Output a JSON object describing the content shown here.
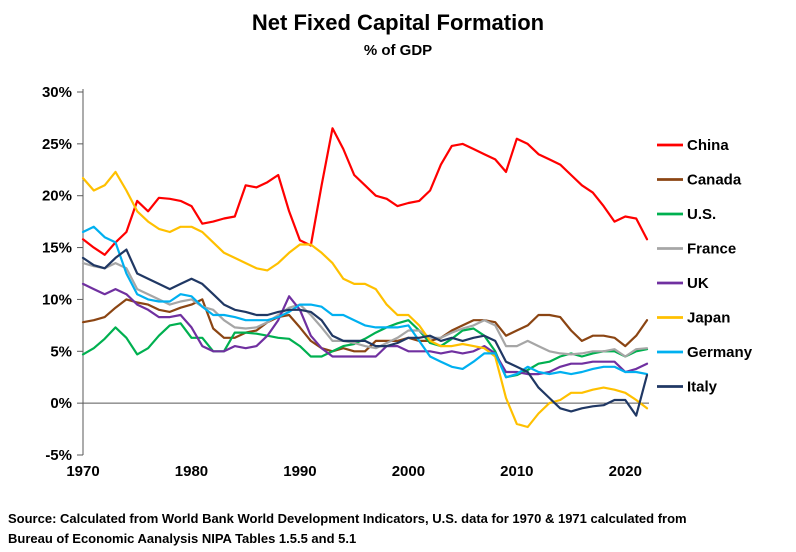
{
  "chart_data": {
    "type": "line",
    "title": "Net Fixed Capital Formation",
    "subtitle": "% of GDP",
    "x_start_year": 1970,
    "x_step": 1,
    "xlim": [
      1970,
      2022
    ],
    "ylim": [
      -5,
      30
    ],
    "xticks": [
      "1970",
      "1980",
      "1990",
      "2000",
      "2010",
      "2020"
    ],
    "yticks": [
      "30%",
      "25%",
      "20%",
      "15%",
      "10%",
      "5%",
      "0%",
      "-5%"
    ],
    "grid": false,
    "legend_position": "right",
    "axis_color": "#595959",
    "series": [
      {
        "name": "China",
        "color": "#FF0000",
        "values": [
          15.8,
          15.0,
          14.3,
          15.5,
          16.5,
          19.5,
          18.5,
          19.8,
          19.7,
          19.5,
          19.0,
          17.3,
          17.5,
          17.8,
          18.0,
          21.0,
          20.8,
          21.3,
          22.0,
          18.5,
          15.7,
          15.2,
          21.0,
          26.5,
          24.5,
          22.0,
          21.0,
          20.0,
          19.7,
          19.0,
          19.3,
          19.5,
          20.5,
          23.0,
          24.8,
          25.0,
          24.5,
          24.0,
          23.5,
          22.3,
          25.5,
          25.0,
          24.0,
          23.5,
          23.0,
          22.0,
          21.0,
          20.3,
          19.0,
          17.5,
          18.0,
          17.8,
          15.8
        ]
      },
      {
        "name": "Canada",
        "color": "#8B4513",
        "values": [
          7.8,
          8.0,
          8.3,
          9.2,
          10.0,
          9.7,
          9.5,
          9.0,
          8.8,
          9.2,
          9.5,
          10.0,
          7.2,
          6.3,
          6.3,
          6.8,
          7.0,
          7.8,
          8.3,
          8.5,
          7.3,
          6.0,
          5.3,
          5.0,
          5.3,
          5.0,
          5.0,
          6.0,
          6.0,
          6.0,
          6.3,
          6.0,
          6.0,
          6.3,
          7.0,
          7.5,
          8.0,
          8.0,
          7.8,
          6.5,
          7.0,
          7.5,
          8.5,
          8.5,
          8.3,
          7.0,
          6.0,
          6.5,
          6.5,
          6.3,
          5.5,
          6.5,
          8.0
        ]
      },
      {
        "name": "U.S.",
        "color": "#00B050",
        "values": [
          4.7,
          5.3,
          6.2,
          7.3,
          6.3,
          4.7,
          5.3,
          6.5,
          7.5,
          7.7,
          6.3,
          6.3,
          5.0,
          5.0,
          6.8,
          6.8,
          6.7,
          6.5,
          6.3,
          6.2,
          5.5,
          4.5,
          4.5,
          5.0,
          5.5,
          5.7,
          6.2,
          6.8,
          7.3,
          7.7,
          8.0,
          7.0,
          5.8,
          5.5,
          6.2,
          7.0,
          7.2,
          6.5,
          5.0,
          2.5,
          2.7,
          3.2,
          3.8,
          4.0,
          4.5,
          4.8,
          4.5,
          4.8,
          5.0,
          5.0,
          4.5,
          5.0,
          5.2
        ]
      },
      {
        "name": "France",
        "color": "#A6A6A6",
        "values": [
          13.5,
          13.2,
          13.0,
          13.5,
          13.0,
          11.0,
          10.5,
          10.0,
          9.5,
          9.8,
          10.0,
          9.3,
          9.0,
          8.0,
          7.3,
          7.2,
          7.3,
          7.8,
          8.5,
          9.2,
          9.5,
          8.5,
          7.3,
          6.0,
          6.0,
          5.8,
          5.5,
          5.3,
          5.8,
          6.3,
          7.0,
          7.0,
          6.3,
          6.3,
          6.8,
          7.2,
          7.5,
          8.0,
          7.5,
          5.5,
          5.5,
          6.0,
          5.5,
          5.0,
          4.8,
          4.7,
          4.8,
          5.0,
          5.0,
          5.2,
          4.5,
          5.2,
          5.3
        ]
      },
      {
        "name": "UK",
        "color": "#7030A0",
        "values": [
          11.5,
          11.0,
          10.5,
          11.0,
          10.5,
          9.5,
          9.0,
          8.3,
          8.3,
          8.5,
          7.3,
          5.5,
          5.0,
          5.0,
          5.5,
          5.3,
          5.5,
          6.5,
          8.0,
          10.3,
          9.0,
          6.5,
          5.3,
          4.5,
          4.5,
          4.5,
          4.5,
          4.5,
          5.5,
          5.5,
          5.0,
          5.0,
          5.0,
          4.8,
          5.0,
          4.8,
          5.0,
          5.5,
          4.8,
          3.0,
          3.0,
          2.8,
          2.8,
          3.0,
          3.5,
          3.8,
          3.8,
          4.0,
          4.0,
          4.0,
          3.0,
          3.3,
          3.8
        ]
      },
      {
        "name": "Japan",
        "color": "#FFC000",
        "values": [
          21.7,
          20.5,
          21.0,
          22.3,
          20.5,
          18.5,
          17.5,
          16.8,
          16.5,
          17.0,
          17.0,
          16.5,
          15.5,
          14.5,
          14.0,
          13.5,
          13.0,
          12.8,
          13.5,
          14.5,
          15.3,
          15.3,
          14.5,
          13.5,
          12.0,
          11.5,
          11.5,
          11.0,
          9.5,
          8.5,
          8.5,
          7.5,
          6.0,
          5.5,
          5.5,
          5.7,
          5.5,
          5.3,
          4.5,
          0.5,
          -2.0,
          -2.3,
          -1.0,
          0.0,
          0.3,
          1.0,
          1.0,
          1.3,
          1.5,
          1.3,
          1.0,
          0.3,
          -0.5
        ]
      },
      {
        "name": "Germany",
        "color": "#00B0F0",
        "values": [
          16.5,
          17.0,
          16.0,
          15.5,
          12.5,
          10.5,
          10.0,
          9.8,
          9.8,
          10.5,
          10.3,
          9.3,
          8.5,
          8.5,
          8.3,
          8.0,
          8.0,
          8.0,
          8.3,
          8.8,
          9.5,
          9.5,
          9.3,
          8.5,
          8.5,
          8.0,
          7.5,
          7.3,
          7.3,
          7.3,
          7.5,
          6.0,
          4.5,
          4.0,
          3.5,
          3.3,
          4.0,
          4.8,
          4.8,
          2.5,
          2.8,
          3.5,
          3.0,
          2.8,
          3.0,
          2.8,
          3.0,
          3.3,
          3.5,
          3.5,
          3.0,
          3.0,
          2.8
        ]
      },
      {
        "name": "Italy",
        "color": "#203864",
        "values": [
          14.0,
          13.3,
          13.0,
          14.0,
          14.8,
          12.5,
          12.0,
          11.5,
          11.0,
          11.5,
          12.0,
          11.5,
          10.5,
          9.5,
          9.0,
          8.8,
          8.5,
          8.5,
          8.8,
          9.0,
          9.0,
          8.8,
          8.0,
          6.5,
          6.0,
          6.0,
          6.0,
          5.5,
          5.5,
          5.8,
          6.3,
          6.3,
          6.5,
          6.0,
          6.3,
          6.0,
          6.3,
          6.5,
          6.0,
          4.0,
          3.5,
          3.0,
          1.5,
          0.5,
          -0.5,
          -0.8,
          -0.5,
          -0.3,
          -0.2,
          0.3,
          0.3,
          -1.2,
          2.7
        ]
      }
    ]
  },
  "source": {
    "line1": "Source:  Calculated from World Bank World Development Indicators, U.S. data for 1970 & 1971 calculated from",
    "line2": "Bureau of Economic Aanalysis NIPA Tables 1.5.5 and 5.1"
  }
}
